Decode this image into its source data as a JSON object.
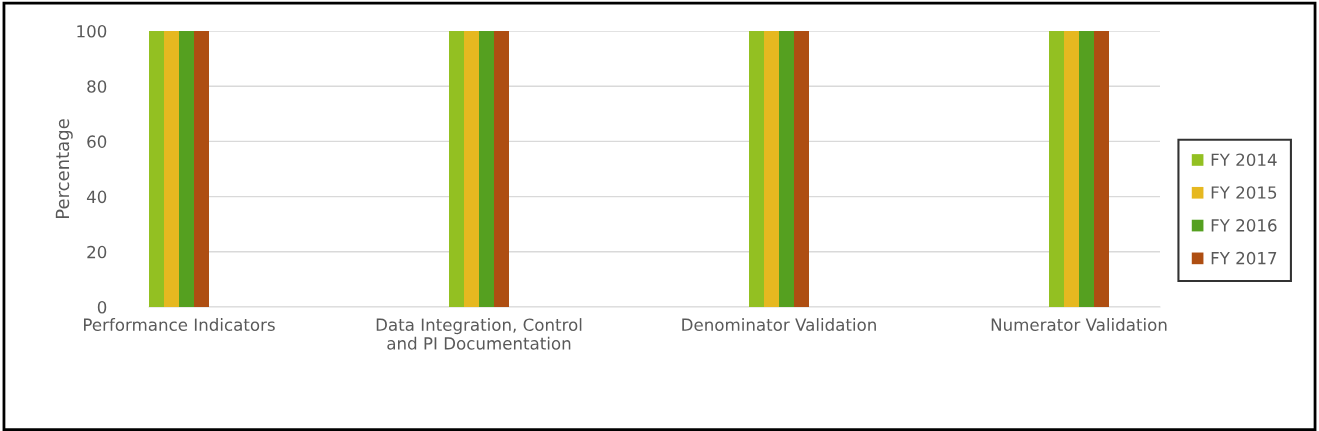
{
  "chart_data": {
    "type": "bar",
    "ylabel": "Percentage",
    "categories": [
      "Performance Indicators",
      "Data Integration, Control\nand PI Documentation",
      "Denominator Validation",
      "Numerator Validation"
    ],
    "series": [
      {
        "name": "FY 2014",
        "color": "#93c022",
        "values": [
          100,
          100,
          100,
          100
        ]
      },
      {
        "name": "FY 2015",
        "color": "#e6b820",
        "values": [
          100,
          100,
          100,
          100
        ]
      },
      {
        "name": "FY 2016",
        "color": "#55a020",
        "values": [
          100,
          100,
          100,
          100
        ]
      },
      {
        "name": "FY 2017",
        "color": "#ae4e12",
        "values": [
          100,
          100,
          100,
          100
        ]
      }
    ],
    "ylim": [
      0,
      100
    ],
    "yticks": [
      0,
      20,
      40,
      60,
      80,
      100
    ],
    "grid": "y",
    "legend": "right"
  }
}
